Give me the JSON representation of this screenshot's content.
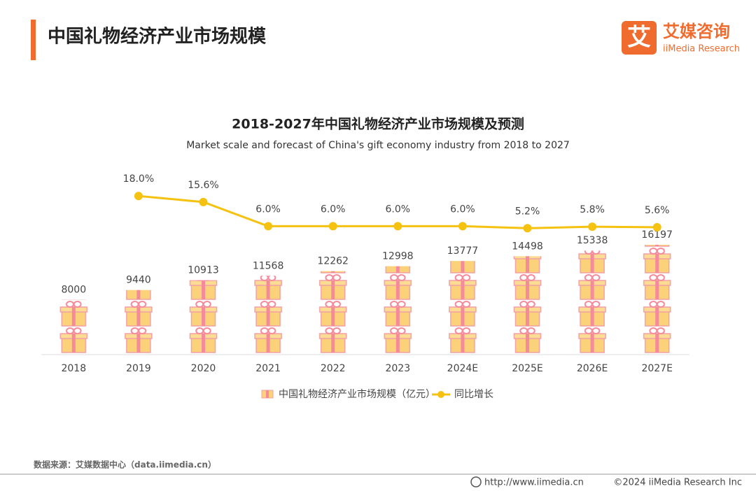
{
  "header": {
    "title": "中国礼物经济产业市场规模",
    "logo_mark": "艾",
    "logo_name": "艾媒咨询",
    "logo_sub": "iiMedia Research"
  },
  "chart_data": {
    "type": "bar",
    "title": "2018-2027年中国礼物经济产业市场规模及预测",
    "subtitle": "Market scale and forecast of China's gift economy industry from 2018 to 2027",
    "categories": [
      "2018",
      "2019",
      "2020",
      "2021",
      "2022",
      "2023",
      "2024E",
      "2025E",
      "2026E",
      "2027E"
    ],
    "series": [
      {
        "name": "中国礼物经济产业市场规模（亿元）",
        "color": "#fbd27a",
        "values": [
          8000,
          9440,
          10913,
          11568,
          12262,
          12998,
          13777,
          14498,
          15338,
          16197
        ]
      },
      {
        "name": "同比增长",
        "type": "line",
        "color": "#f5c211",
        "values": [
          null,
          18.0,
          15.6,
          6.0,
          6.0,
          6.0,
          6.0,
          5.2,
          5.8,
          5.6
        ],
        "value_labels": [
          null,
          "18.0%",
          "15.6%",
          "6.0%",
          "6.0%",
          "6.0%",
          "6.0%",
          "5.2%",
          "5.8%",
          "5.6%"
        ]
      }
    ]
  },
  "footer": {
    "source": "数据来源：艾媒数据中心（data.iimedia.cn）",
    "url": "http://www.iimedia.cn",
    "copyright": "©2024 iiMedia Research Inc"
  }
}
